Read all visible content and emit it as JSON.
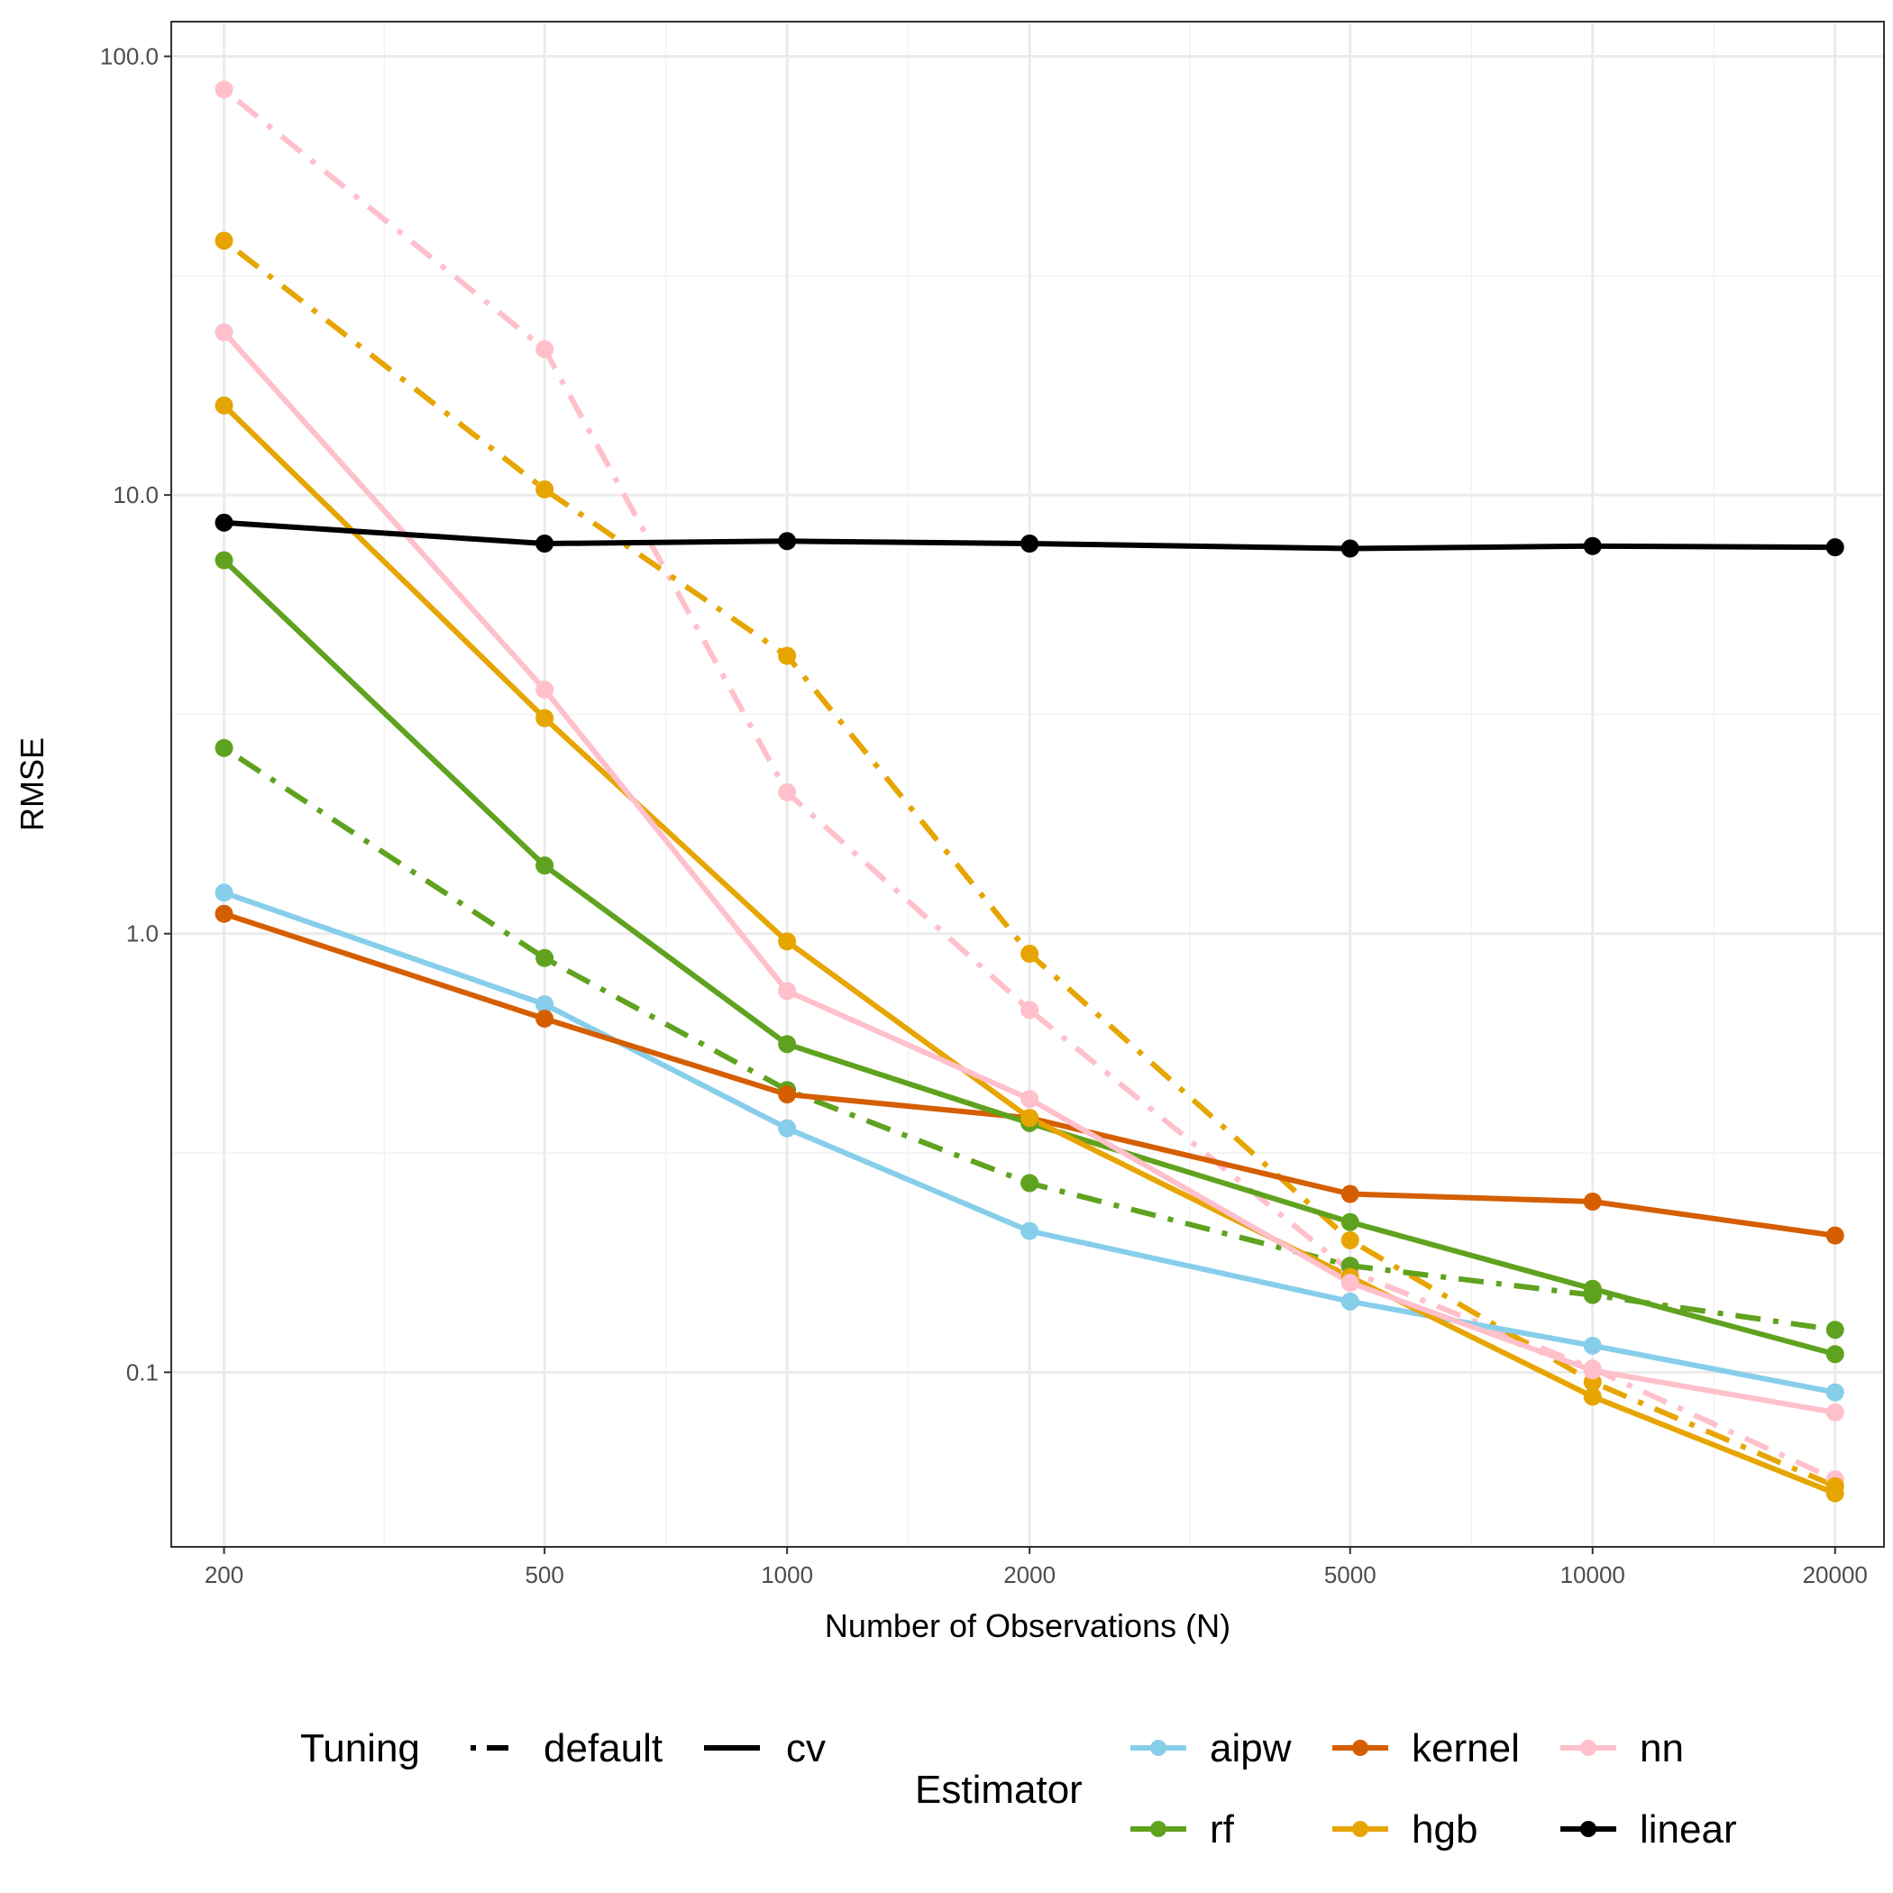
{
  "chart_data": {
    "type": "line",
    "scale": {
      "x": "log",
      "y": "log"
    },
    "xlabel": "Number of Observations (N)",
    "ylabel": "RMSE",
    "x": [
      200,
      500,
      1000,
      2000,
      5000,
      10000,
      20000
    ],
    "x_tick_labels": [
      "200",
      "500",
      "1000",
      "2000",
      "5000",
      "10000",
      "20000"
    ],
    "y_ticks": [
      0.1,
      1,
      10,
      100
    ],
    "y_tick_labels": [
      "0.1",
      "1.0",
      "10.0",
      "100.0"
    ],
    "xlim": [
      172,
      23000
    ],
    "ylim": [
      0.04,
      120
    ],
    "grid": true,
    "legend": {
      "position": "bottom",
      "tuning_title": "Tuning",
      "estimator_title": "Estimator",
      "tuning_entries": [
        {
          "label": "default",
          "style": "dotdash"
        },
        {
          "label": "cv",
          "style": "solid"
        }
      ],
      "estimator_entries": [
        "aipw",
        "kernel",
        "nn",
        "rf",
        "hgb",
        "linear"
      ]
    },
    "colors": {
      "aipw": "#87ceeb",
      "kernel": "#d55e00",
      "nn": "#ffc0cb",
      "rf": "#5fa21f",
      "hgb": "#e6a500",
      "linear": "#000000"
    },
    "series": [
      {
        "estimator": "nn",
        "tuning": "default",
        "values": [
          84,
          21.5,
          2.1,
          0.67,
          0.17,
          0.102,
          0.057
        ]
      },
      {
        "estimator": "hgb",
        "tuning": "default",
        "values": [
          38,
          10.3,
          4.3,
          0.9,
          0.2,
          0.095,
          0.055
        ]
      },
      {
        "estimator": "rf",
        "tuning": "default",
        "values": [
          2.65,
          0.88,
          0.44,
          0.27,
          0.175,
          0.15,
          0.125
        ]
      },
      {
        "estimator": "aipw",
        "tuning": "cv",
        "values": [
          1.24,
          0.69,
          0.36,
          0.21,
          0.145,
          0.115,
          0.09
        ]
      },
      {
        "estimator": "kernel",
        "tuning": "cv",
        "values": [
          1.11,
          0.64,
          0.43,
          0.38,
          0.255,
          0.245,
          0.205
        ]
      },
      {
        "estimator": "rf",
        "tuning": "cv",
        "values": [
          7.1,
          1.43,
          0.56,
          0.37,
          0.22,
          0.155,
          0.11
        ]
      },
      {
        "estimator": "hgb",
        "tuning": "cv",
        "values": [
          16,
          3.1,
          0.96,
          0.38,
          0.165,
          0.088,
          0.053
        ]
      },
      {
        "estimator": "nn",
        "tuning": "cv",
        "values": [
          23.5,
          3.6,
          0.74,
          0.42,
          0.16,
          0.101,
          0.081
        ]
      },
      {
        "estimator": "linear",
        "tuning": "cv",
        "values": [
          8.65,
          7.75,
          7.85,
          7.75,
          7.55,
          7.65,
          7.6
        ]
      }
    ]
  }
}
